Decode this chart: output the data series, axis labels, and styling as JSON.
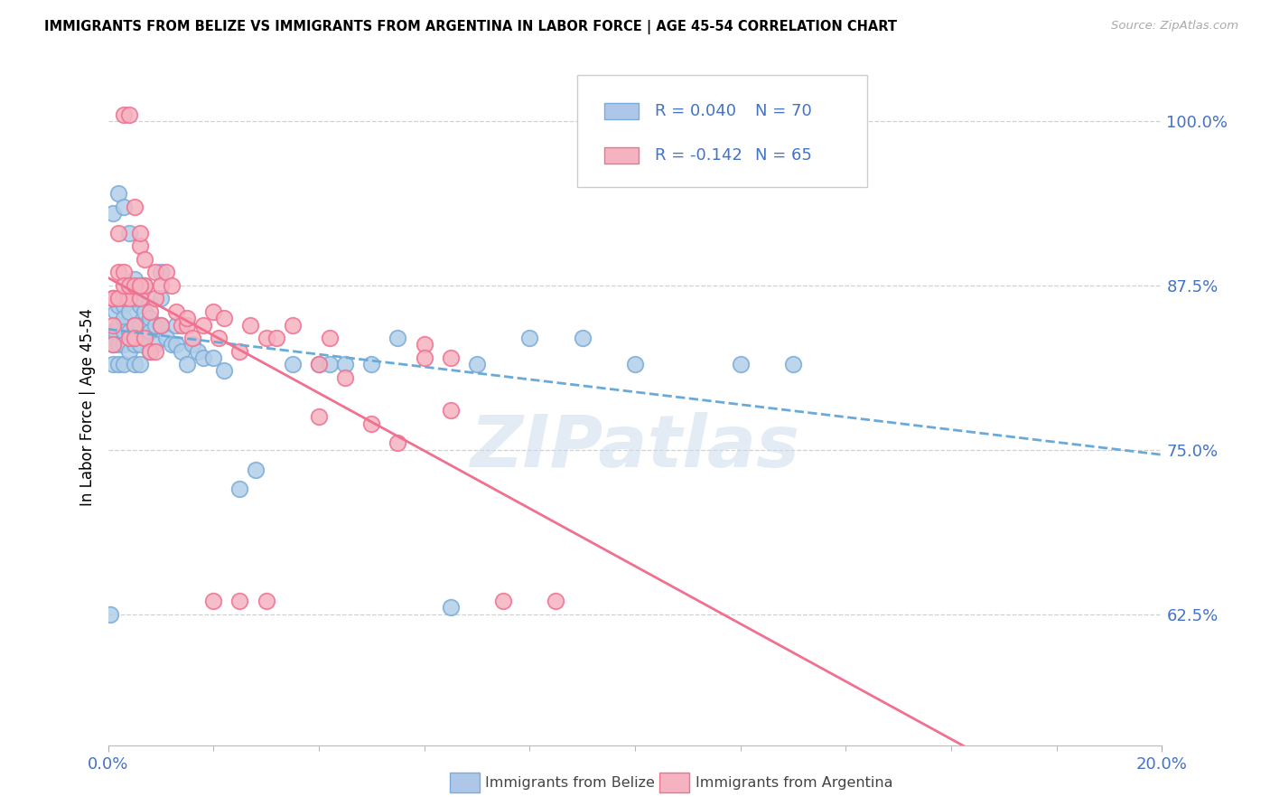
{
  "title": "IMMIGRANTS FROM BELIZE VS IMMIGRANTS FROM ARGENTINA IN LABOR FORCE | AGE 45-54 CORRELATION CHART",
  "source": "Source: ZipAtlas.com",
  "ylabel": "In Labor Force | Age 45-54",
  "xlim": [
    0.0,
    0.2
  ],
  "ylim": [
    0.525,
    1.04
  ],
  "yticks": [
    0.625,
    0.75,
    0.875,
    1.0
  ],
  "ytick_labels": [
    "62.5%",
    "75.0%",
    "87.5%",
    "100.0%"
  ],
  "xtick_labels_bottom": [
    "0.0%",
    "20.0%"
  ],
  "xtick_pos_bottom": [
    0.0,
    0.2
  ],
  "belize_R": 0.04,
  "belize_N": 70,
  "argentina_R": -0.142,
  "argentina_N": 65,
  "belize_color": "#b3cfe8",
  "argentina_color": "#f5b3c0",
  "belize_edge_color": "#7aabda",
  "argentina_edge_color": "#f07090",
  "belize_line_color": "#6aaad8",
  "argentina_line_color": "#f07090",
  "legend_belize_color": "#aec6e8",
  "legend_argentina_color": "#f5b3c2",
  "watermark": "ZIPatlas",
  "belize_x": [
    0.0008,
    0.001,
    0.001,
    0.002,
    0.0015,
    0.0015,
    0.002,
    0.002,
    0.002,
    0.003,
    0.003,
    0.003,
    0.003,
    0.003,
    0.004,
    0.004,
    0.004,
    0.004,
    0.005,
    0.005,
    0.005,
    0.005,
    0.005,
    0.006,
    0.006,
    0.006,
    0.006,
    0.007,
    0.007,
    0.007,
    0.008,
    0.008,
    0.008,
    0.009,
    0.009,
    0.01,
    0.01,
    0.01,
    0.011,
    0.012,
    0.013,
    0.013,
    0.014,
    0.015,
    0.016,
    0.017,
    0.018,
    0.02,
    0.022,
    0.025,
    0.028,
    0.035,
    0.04,
    0.042,
    0.045,
    0.05,
    0.055,
    0.065,
    0.07,
    0.08,
    0.09,
    0.1,
    0.12,
    0.13,
    0.0005,
    0.001,
    0.002,
    0.003,
    0.004,
    0.005
  ],
  "belize_y": [
    0.84,
    0.815,
    0.83,
    0.815,
    0.855,
    0.84,
    0.86,
    0.845,
    0.83,
    0.86,
    0.85,
    0.84,
    0.83,
    0.815,
    0.87,
    0.855,
    0.84,
    0.825,
    0.88,
    0.865,
    0.845,
    0.83,
    0.815,
    0.86,
    0.845,
    0.83,
    0.815,
    0.875,
    0.855,
    0.835,
    0.85,
    0.84,
    0.825,
    0.845,
    0.83,
    0.885,
    0.865,
    0.845,
    0.835,
    0.83,
    0.845,
    0.83,
    0.825,
    0.815,
    0.83,
    0.825,
    0.82,
    0.82,
    0.81,
    0.72,
    0.735,
    0.815,
    0.815,
    0.815,
    0.815,
    0.815,
    0.835,
    0.63,
    0.815,
    0.835,
    0.835,
    0.815,
    0.815,
    0.815,
    0.625,
    0.93,
    0.945,
    0.935,
    0.915,
    0.865
  ],
  "argentina_x": [
    0.001,
    0.001,
    0.001,
    0.002,
    0.002,
    0.003,
    0.003,
    0.004,
    0.004,
    0.005,
    0.005,
    0.006,
    0.006,
    0.007,
    0.007,
    0.008,
    0.009,
    0.009,
    0.01,
    0.011,
    0.012,
    0.013,
    0.014,
    0.015,
    0.016,
    0.018,
    0.02,
    0.021,
    0.022,
    0.025,
    0.027,
    0.03,
    0.032,
    0.035,
    0.04,
    0.042,
    0.045,
    0.05,
    0.055,
    0.06,
    0.065,
    0.075,
    0.085,
    0.003,
    0.004,
    0.005,
    0.006,
    0.007,
    0.008,
    0.009,
    0.01,
    0.015,
    0.02,
    0.025,
    0.03,
    0.04,
    0.06,
    0.065,
    0.001,
    0.001,
    0.002,
    0.003,
    0.004,
    0.005,
    0.006
  ],
  "argentina_y": [
    0.845,
    0.83,
    0.865,
    0.915,
    0.885,
    0.885,
    0.865,
    0.865,
    0.835,
    0.845,
    0.835,
    0.905,
    0.865,
    0.895,
    0.875,
    0.855,
    0.885,
    0.865,
    0.875,
    0.885,
    0.875,
    0.855,
    0.845,
    0.845,
    0.835,
    0.845,
    0.855,
    0.835,
    0.85,
    0.825,
    0.845,
    0.835,
    0.835,
    0.845,
    0.815,
    0.835,
    0.805,
    0.77,
    0.755,
    0.83,
    0.82,
    0.635,
    0.635,
    1.005,
    1.005,
    0.935,
    0.915,
    0.835,
    0.825,
    0.825,
    0.845,
    0.85,
    0.635,
    0.635,
    0.635,
    0.775,
    0.82,
    0.78,
    0.865,
    0.865,
    0.865,
    0.875,
    0.875,
    0.875,
    0.875
  ]
}
